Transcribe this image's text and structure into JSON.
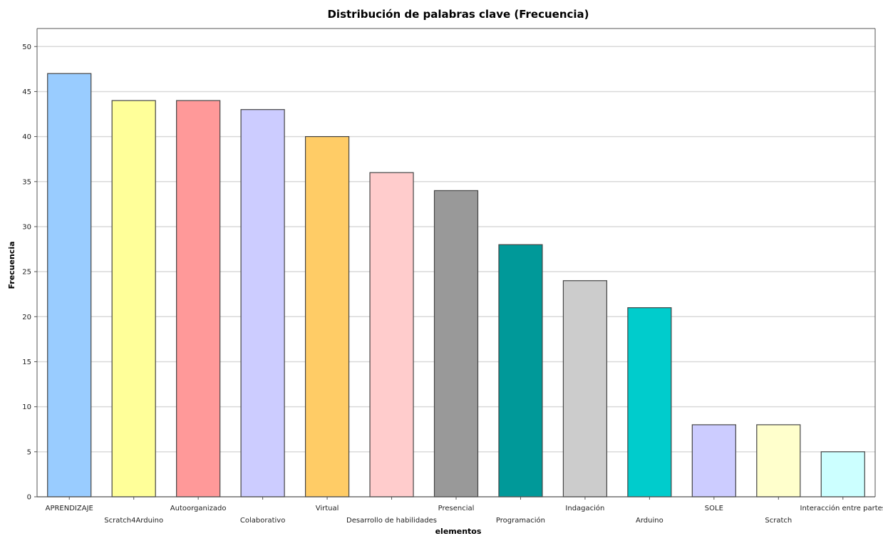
{
  "chart_data": {
    "type": "bar",
    "title": "Distribución de palabras clave (Frecuencia)",
    "xlabel": "elementos",
    "ylabel": "Frecuencia",
    "ylim": [
      0,
      52
    ],
    "yticks": [
      0,
      5,
      10,
      15,
      20,
      25,
      30,
      35,
      40,
      45,
      50
    ],
    "grid": true,
    "legend": "none",
    "categories": [
      "APRENDIZAJE",
      "Scratch4Arduino",
      "Autoorganizado",
      "Colaborativo",
      "Virtual",
      "Desarrollo de habilidades",
      "Presencial",
      "Programación",
      "Indagación",
      "Arduino",
      "SOLE",
      "Scratch",
      "Interacción entre partes"
    ],
    "values": [
      47,
      44,
      44,
      43,
      40,
      36,
      34,
      28,
      24,
      21,
      8,
      8,
      5
    ],
    "colors": [
      "#99ccff",
      "#ffff99",
      "#ff9999",
      "#ccccff",
      "#ffcc66",
      "#ffcccc",
      "#999999",
      "#009999",
      "#cccccc",
      "#00cccc",
      "#ccccff",
      "#ffffcc",
      "#ccffff"
    ]
  }
}
